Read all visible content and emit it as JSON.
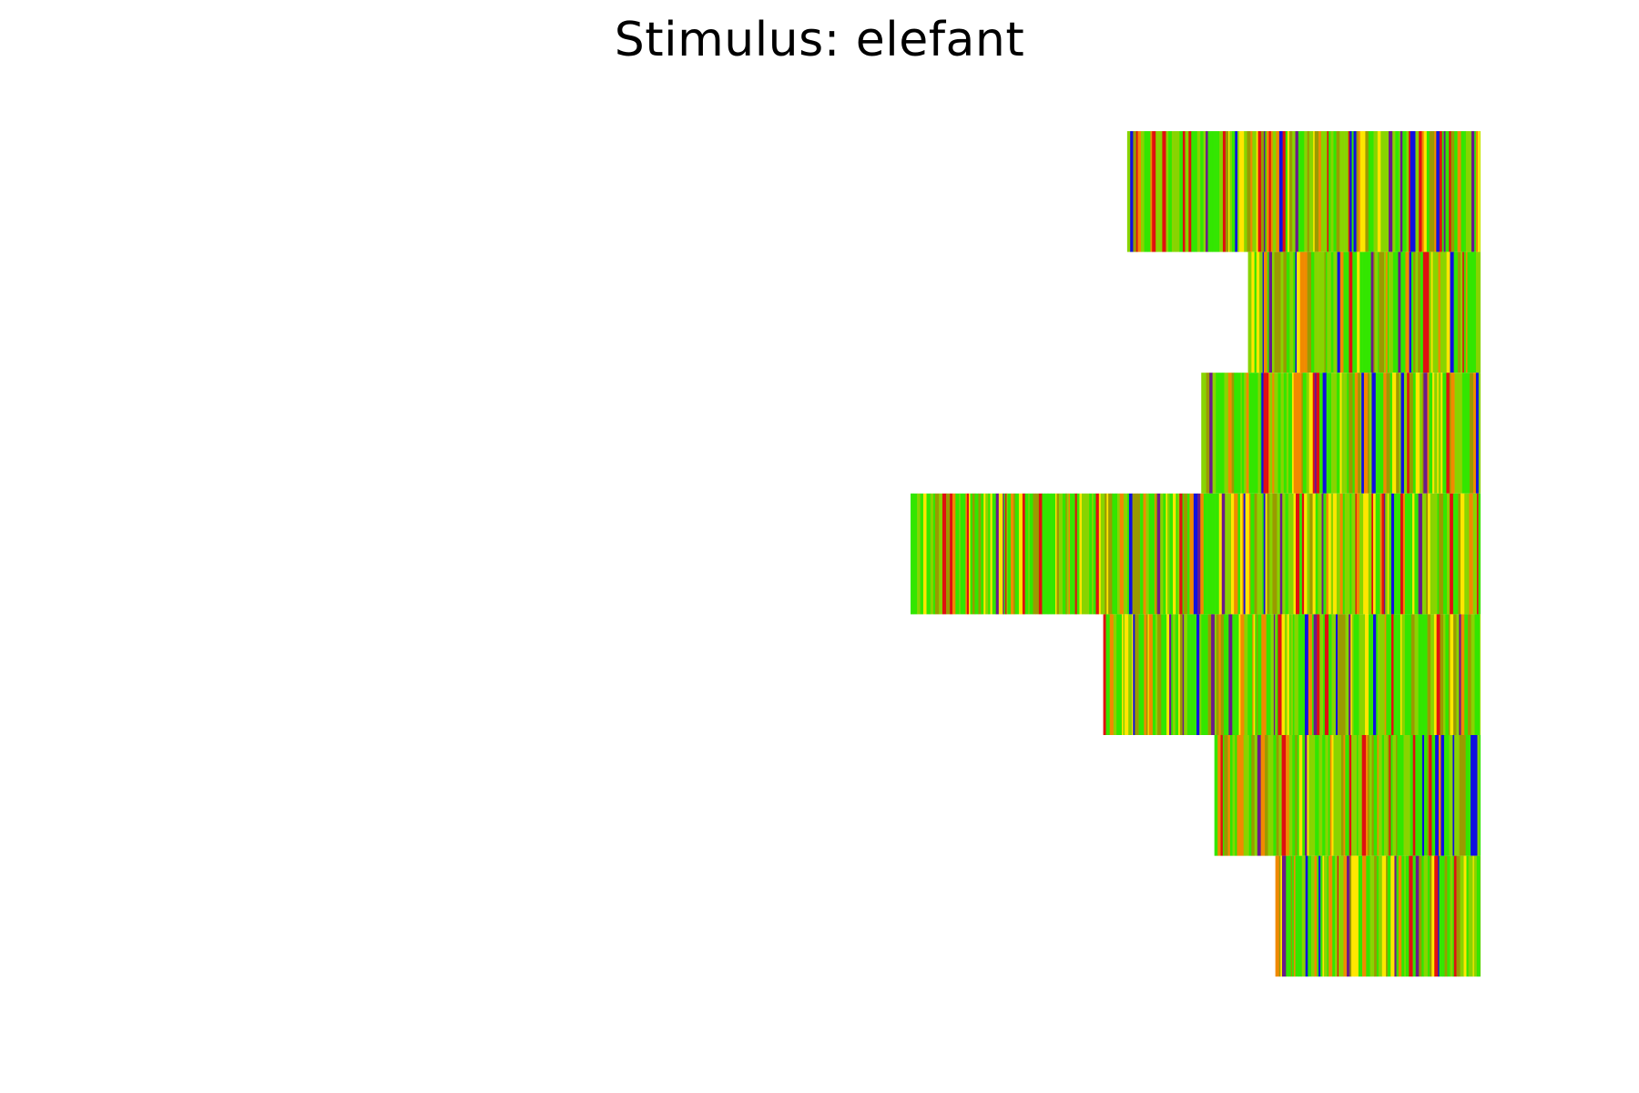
{
  "figure": {
    "title": "Stimulus: elefant"
  },
  "chart_data": {
    "type": "heatmap",
    "title": "Stimulus: elefant",
    "xlabel": "",
    "ylabel": "",
    "axes_visible": false,
    "grid": false,
    "legend": "none",
    "alignment": "right",
    "x_range": [
      0,
      1000
    ],
    "colors": {
      "green": "#33e600",
      "yellow_green": "#88d400",
      "yellow": "#ffe600",
      "olive": "#9a9a00",
      "orange": "#f08a00",
      "red": "#e01010",
      "purple": "#6a1a8a",
      "blue": "#1010e0"
    },
    "palette_order": [
      "green",
      "yellow_green",
      "yellow",
      "olive",
      "orange",
      "red",
      "purple",
      "blue"
    ],
    "rows": [
      {
        "length": 620
      },
      {
        "length": 408
      },
      {
        "length": 490
      },
      {
        "length": 1000
      },
      {
        "length": 662
      },
      {
        "length": 467
      },
      {
        "length": 360
      }
    ]
  }
}
